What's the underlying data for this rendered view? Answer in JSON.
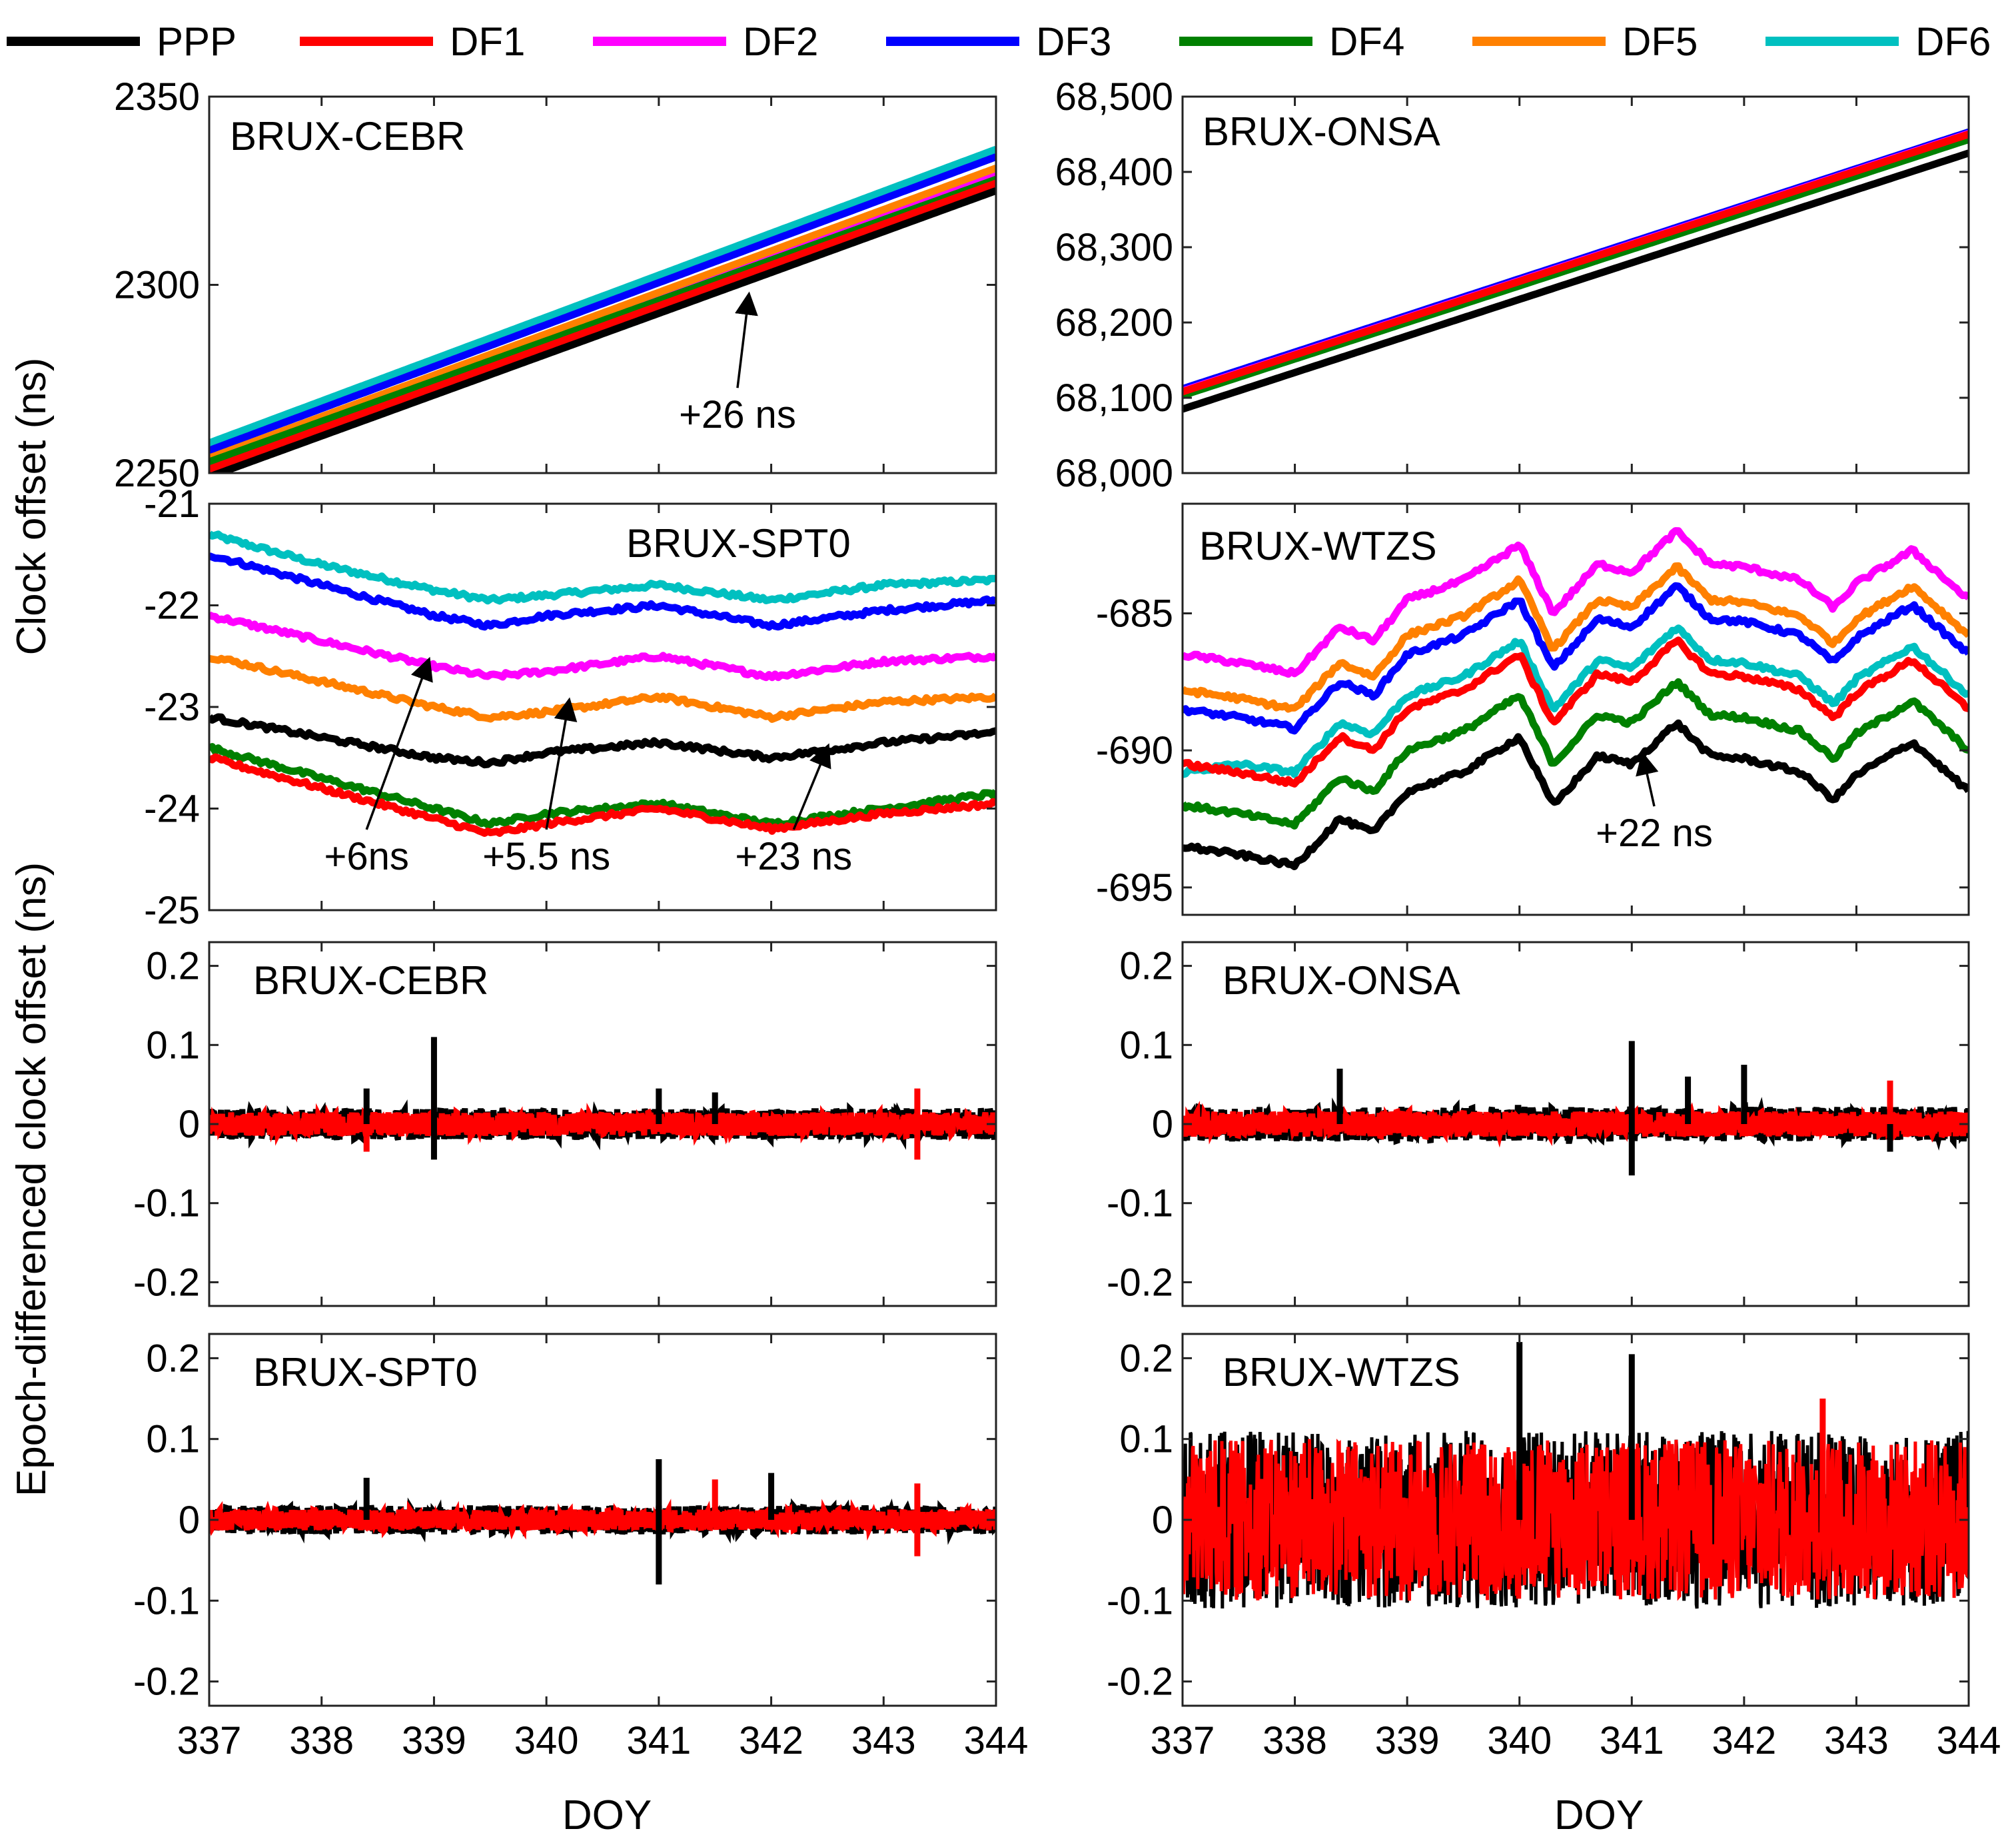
{
  "figure": {
    "legend": [
      {
        "name": "PPP",
        "color": "#000000"
      },
      {
        "name": "DF1",
        "color": "#ff0000"
      },
      {
        "name": "DF2",
        "color": "#ff00ff"
      },
      {
        "name": "DF3",
        "color": "#0000ff"
      },
      {
        "name": "DF4",
        "color": "#008000"
      },
      {
        "name": "DF5",
        "color": "#ff8000"
      },
      {
        "name": "DF6",
        "color": "#00c0c0"
      }
    ],
    "ylabel_top": "Clock offset (ns)",
    "ylabel_bottom": "Epoch-differenced clock offset (ns)",
    "xlabel": "DOY"
  },
  "chart_data": [
    {
      "type": "line",
      "title": "BRUX-CEBR",
      "xlim": [
        337,
        344
      ],
      "ylim": [
        2250,
        2350
      ],
      "yticks": [
        "2250",
        "2300",
        "2350"
      ],
      "xticks": [],
      "series": [
        {
          "name": "PPP",
          "x": [
            337,
            344
          ],
          "y": [
            2249,
            2325
          ]
        },
        {
          "name": "DF1",
          "x": [
            337,
            344
          ],
          "y": [
            2251,
            2327
          ]
        },
        {
          "name": "DF2",
          "x": [
            337,
            344
          ],
          "y": [
            2252,
            2329
          ]
        },
        {
          "name": "DF3",
          "x": [
            337,
            344
          ],
          "y": [
            2256,
            2334
          ]
        },
        {
          "name": "DF4",
          "x": [
            337,
            344
          ],
          "y": [
            2253,
            2328
          ]
        },
        {
          "name": "DF5",
          "x": [
            337,
            344
          ],
          "y": [
            2254,
            2331
          ]
        },
        {
          "name": "DF6",
          "x": [
            337,
            344
          ],
          "y": [
            2258,
            2336
          ]
        }
      ],
      "annotations": [
        {
          "text": "+26 ns",
          "x": 341.7,
          "y": 2262,
          "arrow_to_x": 341.8,
          "arrow_to_y": 2297
        }
      ]
    },
    {
      "type": "line",
      "title": "BRUX-ONSA",
      "xlim": [
        337,
        344
      ],
      "ylim": [
        68000,
        68500
      ],
      "yticks": [
        "68,000",
        "68,100",
        "68,200",
        "68,300",
        "68,400",
        "68,500"
      ],
      "xticks": [],
      "series": [
        {
          "name": "PPP",
          "x": [
            337,
            344
          ],
          "y": [
            68085,
            68425
          ]
        },
        {
          "name": "DF1",
          "x": [
            337,
            344
          ],
          "y": [
            68108,
            68450
          ]
        },
        {
          "name": "DF2",
          "x": [
            337,
            344
          ],
          "y": [
            68109,
            68451
          ]
        },
        {
          "name": "DF3",
          "x": [
            337,
            344
          ],
          "y": [
            68112,
            68453
          ]
        },
        {
          "name": "DF4",
          "x": [
            337,
            344
          ],
          "y": [
            68103,
            68443
          ]
        },
        {
          "name": "DF5",
          "x": [
            337,
            344
          ],
          "y": [
            68107,
            68449
          ]
        },
        {
          "name": "DF6",
          "x": [
            337,
            344
          ],
          "y": [
            68110,
            68452
          ]
        }
      ],
      "annotations": []
    },
    {
      "type": "line",
      "title": "BRUX-SPT0",
      "xlim": [
        337,
        344
      ],
      "ylim": [
        -25,
        -21
      ],
      "yticks": [
        "-25",
        "-24",
        "-23",
        "-22",
        "-21"
      ],
      "xticks": [],
      "series": [
        {
          "name": "PPP",
          "x": [
            337,
            338,
            339,
            339.5,
            340,
            341,
            342,
            343,
            344
          ],
          "y": [
            -23.1,
            -23.3,
            -23.5,
            -23.55,
            -23.45,
            -23.35,
            -23.5,
            -23.35,
            -23.25
          ]
        },
        {
          "name": "DF1",
          "x": [
            337,
            338,
            339,
            339.5,
            340,
            341,
            342,
            343,
            344
          ],
          "y": [
            -23.5,
            -23.8,
            -24.1,
            -24.25,
            -24.15,
            -24.0,
            -24.2,
            -24.05,
            -23.95
          ]
        },
        {
          "name": "DF2",
          "x": [
            337,
            338,
            339,
            339.5,
            340,
            341,
            342,
            343,
            344
          ],
          "y": [
            -22.1,
            -22.35,
            -22.6,
            -22.7,
            -22.65,
            -22.5,
            -22.7,
            -22.55,
            -22.5
          ]
        },
        {
          "name": "DF3",
          "x": [
            337,
            338,
            339,
            339.5,
            340,
            341,
            342,
            343,
            344
          ],
          "y": [
            -21.5,
            -21.8,
            -22.1,
            -22.2,
            -22.1,
            -22.0,
            -22.2,
            -22.05,
            -21.95
          ]
        },
        {
          "name": "DF4",
          "x": [
            337,
            338,
            339,
            339.5,
            340,
            341,
            342,
            343,
            344
          ],
          "y": [
            -23.4,
            -23.7,
            -24.0,
            -24.15,
            -24.05,
            -23.95,
            -24.15,
            -24.0,
            -23.85
          ]
        },
        {
          "name": "DF5",
          "x": [
            337,
            338,
            339,
            339.5,
            340,
            341,
            342,
            343,
            344
          ],
          "y": [
            -22.5,
            -22.75,
            -23.0,
            -23.1,
            -23.05,
            -22.9,
            -23.1,
            -22.95,
            -22.9
          ]
        },
        {
          "name": "DF6",
          "x": [
            337,
            338,
            339,
            339.5,
            340,
            341,
            342,
            343,
            344
          ],
          "y": [
            -21.3,
            -21.6,
            -21.85,
            -21.95,
            -21.9,
            -21.8,
            -21.95,
            -21.8,
            -21.75
          ]
        }
      ],
      "annotations": [
        {
          "text": "+6ns",
          "x": 338.4,
          "y": -24.6,
          "arrow_to_x": 338.95,
          "arrow_to_y": -22.55
        },
        {
          "text": "+5.5 ns",
          "x": 340.0,
          "y": -24.6,
          "arrow_to_x": 340.2,
          "arrow_to_y": -22.95
        },
        {
          "text": "+23 ns",
          "x": 342.2,
          "y": -24.6,
          "arrow_to_x": 342.5,
          "arrow_to_y": -23.4
        }
      ]
    },
    {
      "type": "line",
      "title": "BRUX-WTZS",
      "xlim": [
        337,
        344
      ],
      "ylim": [
        -696,
        -681
      ],
      "yticks": [
        "-695",
        "-690",
        "-685"
      ],
      "xticks": [],
      "series": [
        {
          "name": "PPP",
          "x": [
            337,
            337.5,
            338,
            338.4,
            338.7,
            339,
            339.5,
            340,
            340.3,
            340.7,
            341,
            341.4,
            341.7,
            342,
            342.5,
            342.8,
            343,
            343.5,
            344
          ],
          "y": [
            -693.5,
            -693.8,
            -694.2,
            -692.5,
            -693,
            -691.5,
            -690.8,
            -689.5,
            -692,
            -690.2,
            -690.5,
            -689,
            -690.2,
            -690.3,
            -690.8,
            -691.8,
            -690.9,
            -689.7,
            -691.5
          ]
        },
        {
          "name": "DF1",
          "x": [
            337,
            337.5,
            338,
            338.4,
            338.7,
            339,
            339.5,
            340,
            340.3,
            340.7,
            341,
            341.4,
            341.7,
            342,
            342.5,
            342.8,
            343,
            343.5,
            344
          ],
          "y": [
            -690.5,
            -690.8,
            -691.2,
            -689.5,
            -690,
            -688.5,
            -687.8,
            -686.5,
            -689,
            -687.2,
            -687.5,
            -686,
            -687.2,
            -687.3,
            -687.8,
            -688.8,
            -687.9,
            -686.7,
            -688.5
          ]
        },
        {
          "name": "DF2",
          "x": [
            337,
            337.5,
            338,
            338.4,
            338.7,
            339,
            339.5,
            340,
            340.3,
            340.7,
            341,
            341.4,
            341.7,
            342,
            342.5,
            342.8,
            343,
            343.5,
            344
          ],
          "y": [
            -686.5,
            -686.8,
            -687.2,
            -685.5,
            -686,
            -684.5,
            -683.8,
            -682.5,
            -685,
            -683.2,
            -683.5,
            -682,
            -683.2,
            -683.3,
            -683.8,
            -684.8,
            -683.9,
            -682.7,
            -684.5
          ]
        },
        {
          "name": "DF3",
          "x": [
            337,
            337.5,
            338,
            338.4,
            338.7,
            339,
            339.5,
            340,
            340.3,
            340.7,
            341,
            341.4,
            341.7,
            342,
            342.5,
            342.8,
            343,
            343.5,
            344
          ],
          "y": [
            -688.5,
            -688.8,
            -689.2,
            -687.5,
            -688,
            -686.5,
            -685.8,
            -684.5,
            -687,
            -685.2,
            -685.5,
            -684,
            -685.2,
            -685.3,
            -685.8,
            -686.8,
            -685.9,
            -684.7,
            -686.5
          ]
        },
        {
          "name": "DF4",
          "x": [
            337,
            337.5,
            338,
            338.4,
            338.7,
            339,
            339.5,
            340,
            340.3,
            340.7,
            341,
            341.4,
            341.7,
            342,
            342.5,
            342.8,
            343,
            343.5,
            344
          ],
          "y": [
            -692,
            -692.3,
            -692.7,
            -691,
            -691.5,
            -690,
            -689.3,
            -688,
            -690.5,
            -688.7,
            -689,
            -687.5,
            -688.7,
            -688.8,
            -689.3,
            -690.3,
            -689.4,
            -688.2,
            -690
          ]
        },
        {
          "name": "DF5",
          "x": [
            337,
            337.5,
            338,
            338.4,
            338.7,
            339,
            339.5,
            340,
            340.3,
            340.7,
            341,
            341.4,
            341.7,
            342,
            342.5,
            342.8,
            343,
            343.5,
            344
          ],
          "y": [
            -687.8,
            -688.1,
            -688.5,
            -686.8,
            -687.3,
            -685.8,
            -685.1,
            -683.8,
            -686.3,
            -684.5,
            -684.8,
            -683.3,
            -684.5,
            -684.6,
            -685.1,
            -686.1,
            -685.2,
            -684,
            -685.8
          ]
        },
        {
          "name": "DF6",
          "x": [
            337,
            337.5,
            338,
            338.4,
            338.7,
            339,
            339.5,
            340,
            340.3,
            340.7,
            341,
            341.4,
            341.7,
            342,
            342.5,
            342.8,
            343,
            343.5,
            344
          ],
          "y": [
            -690.8,
            -690.5,
            -690.8,
            -689.0,
            -689.4,
            -688.0,
            -687.3,
            -686.0,
            -688.5,
            -686.7,
            -687.0,
            -685.5,
            -686.7,
            -686.8,
            -687.3,
            -688.3,
            -687.4,
            -686.2,
            -688.0
          ]
        }
      ],
      "annotations": [
        {
          "text": "+22 ns",
          "x": 341.2,
          "y": -693.5,
          "arrow_to_x": 341.1,
          "arrow_to_y": -690.2
        }
      ]
    },
    {
      "type": "line",
      "title": "BRUX-CEBR",
      "xlim": [
        337,
        344
      ],
      "ylim": [
        -0.23,
        0.23
      ],
      "yticks": [
        "-0.2",
        "-0.1",
        "0",
        "0.1",
        "0.2"
      ],
      "xticks": [],
      "noise": {
        "PPP": 0.02,
        "DF1": 0.015
      },
      "spikes": [
        {
          "series": "PPP",
          "x": 339.0,
          "y": 0.11
        },
        {
          "series": "PPP",
          "x": 339.0,
          "y": -0.045
        },
        {
          "series": "PPP",
          "x": 338.4,
          "y": 0.045
        },
        {
          "series": "PPP",
          "x": 341.0,
          "y": 0.045
        },
        {
          "series": "PPP",
          "x": 341.5,
          "y": 0.04
        },
        {
          "series": "DF1",
          "x": 343.3,
          "y": 0.045
        },
        {
          "series": "DF1",
          "x": 343.3,
          "y": -0.045
        },
        {
          "series": "DF1",
          "x": 338.4,
          "y": -0.035
        }
      ],
      "series": [
        {
          "name": "PPP"
        },
        {
          "name": "DF1"
        }
      ]
    },
    {
      "type": "line",
      "title": "BRUX-ONSA",
      "xlim": [
        337,
        344
      ],
      "ylim": [
        -0.23,
        0.23
      ],
      "yticks": [
        "-0.2",
        "-0.1",
        "0",
        "0.1",
        "0.2"
      ],
      "xticks": [],
      "noise": {
        "PPP": 0.022,
        "DF1": 0.016
      },
      "spikes": [
        {
          "series": "PPP",
          "x": 341.0,
          "y": 0.105
        },
        {
          "series": "PPP",
          "x": 341.0,
          "y": -0.065
        },
        {
          "series": "PPP",
          "x": 342.0,
          "y": 0.075
        },
        {
          "series": "PPP",
          "x": 338.4,
          "y": 0.07
        },
        {
          "series": "PPP",
          "x": 341.5,
          "y": 0.06
        },
        {
          "series": "DF1",
          "x": 343.3,
          "y": 0.055
        },
        {
          "series": "PPP",
          "x": 343.3,
          "y": -0.035
        }
      ],
      "series": [
        {
          "name": "PPP"
        },
        {
          "name": "DF1"
        }
      ]
    },
    {
      "type": "line",
      "title": "BRUX-SPT0",
      "xlim": [
        337,
        344
      ],
      "ylim": [
        -0.23,
        0.23
      ],
      "yticks": [
        "-0.2",
        "-0.1",
        "0",
        "0.1",
        "0.2"
      ],
      "xticks": [
        "337",
        "338",
        "339",
        "340",
        "341",
        "342",
        "343",
        "344"
      ],
      "noise": {
        "PPP": 0.018,
        "DF1": 0.013
      },
      "spikes": [
        {
          "series": "PPP",
          "x": 341.0,
          "y": 0.075
        },
        {
          "series": "PPP",
          "x": 341.0,
          "y": -0.08
        },
        {
          "series": "PPP",
          "x": 342.0,
          "y": 0.058
        },
        {
          "series": "PPP",
          "x": 338.4,
          "y": 0.052
        },
        {
          "series": "DF1",
          "x": 341.5,
          "y": 0.05
        },
        {
          "series": "DF1",
          "x": 343.3,
          "y": 0.045
        },
        {
          "series": "DF1",
          "x": 343.3,
          "y": -0.045
        }
      ],
      "series": [
        {
          "name": "PPP"
        },
        {
          "name": "DF1"
        }
      ]
    },
    {
      "type": "line",
      "title": "BRUX-WTZS",
      "xlim": [
        337,
        344
      ],
      "ylim": [
        -0.23,
        0.23
      ],
      "yticks": [
        "-0.2",
        "-0.1",
        "0",
        "0.1",
        "0.2"
      ],
      "xticks": [
        "337",
        "338",
        "339",
        "340",
        "341",
        "342",
        "343",
        "344"
      ],
      "noise": {
        "PPP": 0.11,
        "DF1": 0.1
      },
      "spikes": [
        {
          "series": "PPP",
          "x": 340.0,
          "y": 0.22
        },
        {
          "series": "PPP",
          "x": 341.0,
          "y": 0.205
        },
        {
          "series": "DF1",
          "x": 342.7,
          "y": 0.15
        }
      ],
      "series": [
        {
          "name": "PPP"
        },
        {
          "name": "DF1"
        }
      ]
    }
  ]
}
